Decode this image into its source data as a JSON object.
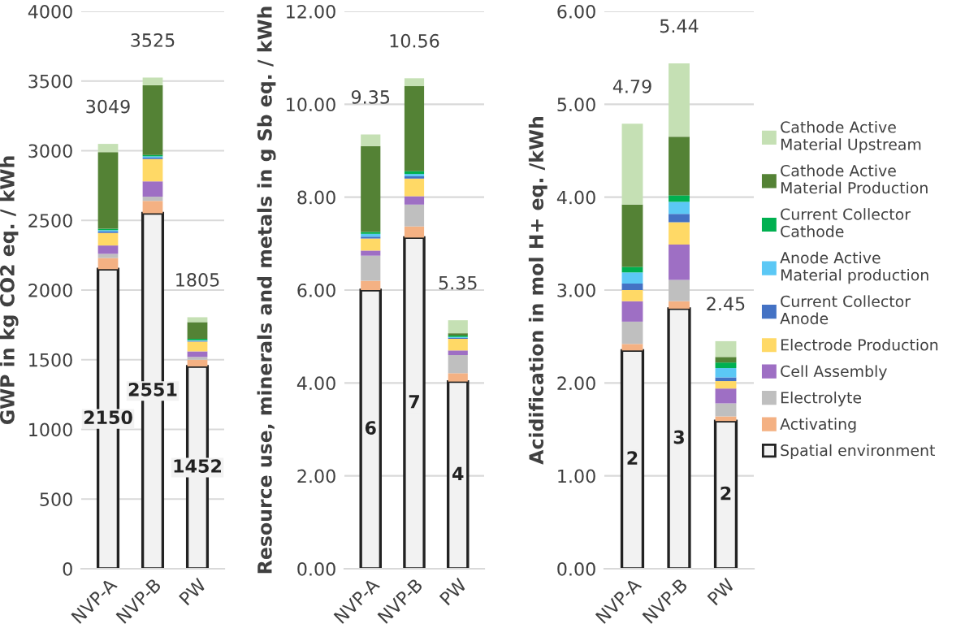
{
  "chart_data": [
    {
      "type": "bar",
      "stacked": true,
      "ylabel": "GWP in kg CO2 eq. / kWh",
      "categories": [
        "NVP-A",
        "NVP-B",
        "PW"
      ],
      "ylim": [
        0,
        4000
      ],
      "yticks": [
        0,
        500,
        1000,
        1500,
        2000,
        2500,
        3000,
        3500,
        4000
      ],
      "grid": "y",
      "legend": false,
      "totals": [
        "3049",
        "3525",
        "1805"
      ],
      "series": [
        {
          "color": "#f2f2f2",
          "values": [
            2150,
            2551,
            1452
          ],
          "value_labels": [
            "2150",
            "2551",
            "1452"
          ]
        },
        {
          "color": "#f4b183",
          "values": [
            80,
            89,
            48
          ]
        },
        {
          "color": "#bfbfbf",
          "values": [
            30,
            30,
            20
          ]
        },
        {
          "color": "#9e6fc4",
          "values": [
            60,
            110,
            40
          ]
        },
        {
          "color": "#ffd966",
          "values": [
            90,
            160,
            70
          ]
        },
        {
          "color": "#4472c4",
          "values": [
            10,
            10,
            5
          ]
        },
        {
          "color": "#5bc8f5",
          "values": [
            10,
            10,
            5
          ]
        },
        {
          "color": "#00b050",
          "values": [
            10,
            10,
            10
          ]
        },
        {
          "color": "#548235",
          "values": [
            550,
            500,
            120
          ]
        },
        {
          "color": "#c5e0b4",
          "values": [
            59,
            55,
            35
          ]
        }
      ]
    },
    {
      "type": "bar",
      "stacked": true,
      "ylabel": "Resource use, minerals and metals in g Sb eq. / kWh",
      "categories": [
        "NVP-A",
        "NVP-B",
        "PW"
      ],
      "ylim": [
        0,
        12
      ],
      "yticks": [
        {
          "value": 0,
          "label": "0.00"
        },
        {
          "value": 2,
          "label": "2.00"
        },
        {
          "value": 4,
          "label": "4.00"
        },
        {
          "value": 6,
          "label": "6.00"
        },
        {
          "value": 8,
          "label": "8.00"
        },
        {
          "value": 10,
          "label": "10.00"
        },
        {
          "value": 12,
          "label": "12.00"
        }
      ],
      "grid": "y",
      "legend": false,
      "totals": [
        "9.35",
        "10.56",
        "5.35"
      ],
      "series": [
        {
          "color": "#f2f2f2",
          "values": [
            6.0,
            7.13,
            4.03
          ],
          "value_labels": [
            "6",
            "7",
            "4"
          ]
        },
        {
          "color": "#f4b183",
          "values": [
            0.2,
            0.24,
            0.18
          ]
        },
        {
          "color": "#bfbfbf",
          "values": [
            0.54,
            0.47,
            0.39
          ]
        },
        {
          "color": "#9e6fc4",
          "values": [
            0.11,
            0.18,
            0.1
          ]
        },
        {
          "color": "#ffd966",
          "values": [
            0.26,
            0.38,
            0.25
          ]
        },
        {
          "color": "#4472c4",
          "values": [
            0.04,
            0.05,
            0.02
          ]
        },
        {
          "color": "#5bc8f5",
          "values": [
            0.06,
            0.05,
            0.02
          ]
        },
        {
          "color": "#00b050",
          "values": [
            0.04,
            0.06,
            0.03
          ]
        },
        {
          "color": "#548235",
          "values": [
            1.85,
            1.83,
            0.05
          ]
        },
        {
          "color": "#c5e0b4",
          "values": [
            0.25,
            0.17,
            0.28
          ]
        }
      ]
    },
    {
      "type": "bar",
      "stacked": true,
      "ylabel": "Acidification in mol H+ eq. /kWh",
      "categories": [
        "NVP-A",
        "NVP-B",
        "PW"
      ],
      "ylim": [
        0,
        6
      ],
      "yticks": [
        {
          "value": 0,
          "label": "0.00"
        },
        {
          "value": 1,
          "label": "1.00"
        },
        {
          "value": 2,
          "label": "2.00"
        },
        {
          "value": 3,
          "label": "3.00"
        },
        {
          "value": 4,
          "label": "4.00"
        },
        {
          "value": 5,
          "label": "5.00"
        },
        {
          "value": 6,
          "label": "6.00"
        }
      ],
      "grid": "y",
      "legend": "right",
      "totals": [
        "4.79",
        "5.44",
        "2.45"
      ],
      "series": [
        {
          "name": "Spatial environment",
          "color": "#f2f2f2",
          "values": [
            2.35,
            2.8,
            1.59
          ],
          "value_labels": [
            "2",
            "3",
            "2"
          ]
        },
        {
          "name": "Activating",
          "color": "#f4b183",
          "values": [
            0.07,
            0.08,
            0.05
          ]
        },
        {
          "name": "Electrolyte",
          "color": "#bfbfbf",
          "values": [
            0.24,
            0.23,
            0.14
          ]
        },
        {
          "name": "Cell Assembly",
          "color": "#9e6fc4",
          "values": [
            0.22,
            0.38,
            0.16
          ]
        },
        {
          "name": "Electrode Production",
          "color": "#ffd966",
          "values": [
            0.12,
            0.24,
            0.08
          ]
        },
        {
          "name": "Current Collector\nAnode",
          "color": "#4472c4",
          "values": [
            0.07,
            0.09,
            0.04
          ]
        },
        {
          "name": "Anode Active\nMaterial production",
          "color": "#5bc8f5",
          "values": [
            0.12,
            0.13,
            0.1
          ]
        },
        {
          "name": "Current Collector\nCathode",
          "color": "#00b050",
          "values": [
            0.06,
            0.07,
            0.06
          ]
        },
        {
          "name": "Cathode Active\nMaterial Production",
          "color": "#548235",
          "values": [
            0.67,
            0.63,
            0.06
          ]
        },
        {
          "name": "Cathode Active\nMaterial Upstream",
          "color": "#c5e0b4",
          "values": [
            0.87,
            0.79,
            0.17
          ]
        }
      ]
    }
  ]
}
